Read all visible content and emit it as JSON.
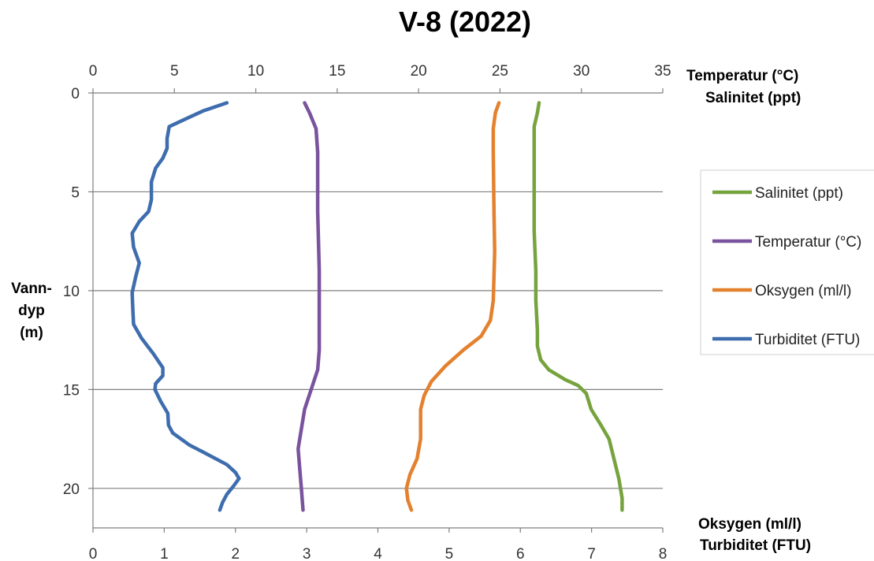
{
  "chart_data": {
    "type": "line",
    "title": "V-8 (2022)",
    "top_axis": {
      "label_line1": "Temperatur (°C)",
      "label_line2": "Salinitet (ppt)",
      "range": [
        0,
        35
      ],
      "ticks": [
        "0",
        "5",
        "10",
        "15",
        "20",
        "25",
        "30",
        "35"
      ]
    },
    "bottom_axis": {
      "label_line1": "Oksygen (ml/l)",
      "label_line2": "Turbiditet (FTU)",
      "range": [
        0,
        8
      ],
      "ticks": [
        "0",
        "1",
        "2",
        "3",
        "4",
        "5",
        "6",
        "7",
        "8"
      ]
    },
    "y_axis": {
      "label_lines": [
        "Vann-",
        "dyp",
        "(m)"
      ],
      "range": [
        0,
        22
      ],
      "inverted": true,
      "ticks": [
        "0",
        "5",
        "10",
        "15",
        "20"
      ]
    },
    "grid": "horizontal",
    "legend_position": "right",
    "series": [
      {
        "name": "Salinitet (ppt)",
        "axis": "top",
        "color": "#77A33E",
        "points": [
          [
            27.4,
            0.5
          ],
          [
            27.3,
            1.0
          ],
          [
            27.1,
            1.7
          ],
          [
            27.1,
            3
          ],
          [
            27.1,
            5
          ],
          [
            27.1,
            7
          ],
          [
            27.2,
            9
          ],
          [
            27.2,
            10.5
          ],
          [
            27.3,
            12
          ],
          [
            27.3,
            12.8
          ],
          [
            27.5,
            13.5
          ],
          [
            28.0,
            14.0
          ],
          [
            29.0,
            14.5
          ],
          [
            29.8,
            14.8
          ],
          [
            30.3,
            15.2
          ],
          [
            30.6,
            16.0
          ],
          [
            31.2,
            16.8
          ],
          [
            31.7,
            17.5
          ],
          [
            32.0,
            18.5
          ],
          [
            32.3,
            19.5
          ],
          [
            32.5,
            20.5
          ],
          [
            32.5,
            21.1
          ]
        ]
      },
      {
        "name": "Temperatur (°C)",
        "axis": "top",
        "color": "#7A539E",
        "points": [
          [
            13.0,
            0.5
          ],
          [
            13.3,
            1.0
          ],
          [
            13.7,
            1.8
          ],
          [
            13.8,
            3
          ],
          [
            13.8,
            6
          ],
          [
            13.9,
            9
          ],
          [
            13.9,
            11
          ],
          [
            13.9,
            13
          ],
          [
            13.8,
            14
          ],
          [
            13.4,
            15
          ],
          [
            13.0,
            16
          ],
          [
            12.8,
            17
          ],
          [
            12.6,
            18
          ],
          [
            12.7,
            19
          ],
          [
            12.8,
            20
          ],
          [
            12.9,
            21.1
          ]
        ]
      },
      {
        "name": "Oksygen (ml/l)",
        "axis": "bottom",
        "color": "#E4812E",
        "points": [
          [
            5.7,
            0.5
          ],
          [
            5.65,
            1.0
          ],
          [
            5.62,
            1.8
          ],
          [
            5.62,
            3
          ],
          [
            5.63,
            6
          ],
          [
            5.64,
            8
          ],
          [
            5.62,
            10.5
          ],
          [
            5.58,
            11.5
          ],
          [
            5.45,
            12.3
          ],
          [
            5.2,
            13
          ],
          [
            4.95,
            13.8
          ],
          [
            4.75,
            14.6
          ],
          [
            4.65,
            15.3
          ],
          [
            4.6,
            16
          ],
          [
            4.6,
            17.5
          ],
          [
            4.55,
            18.5
          ],
          [
            4.45,
            19.3
          ],
          [
            4.4,
            20.0
          ],
          [
            4.42,
            20.6
          ],
          [
            4.47,
            21.1
          ]
        ]
      },
      {
        "name": "Turbiditet (FTU)",
        "axis": "bottom",
        "color": "#3E6DAE",
        "points": [
          [
            1.88,
            0.5
          ],
          [
            1.55,
            0.9
          ],
          [
            1.25,
            1.4
          ],
          [
            1.07,
            1.7
          ],
          [
            1.04,
            2.3
          ],
          [
            1.04,
            2.8
          ],
          [
            0.98,
            3.3
          ],
          [
            0.88,
            3.8
          ],
          [
            0.82,
            4.5
          ],
          [
            0.82,
            5.4
          ],
          [
            0.78,
            6.0
          ],
          [
            0.65,
            6.5
          ],
          [
            0.55,
            7.1
          ],
          [
            0.57,
            7.8
          ],
          [
            0.65,
            8.6
          ],
          [
            0.6,
            9.3
          ],
          [
            0.55,
            10.1
          ],
          [
            0.56,
            11.0
          ],
          [
            0.57,
            11.7
          ],
          [
            0.68,
            12.4
          ],
          [
            0.85,
            13.2
          ],
          [
            0.98,
            13.9
          ],
          [
            0.98,
            14.3
          ],
          [
            0.88,
            14.7
          ],
          [
            0.87,
            15.0
          ],
          [
            0.95,
            15.6
          ],
          [
            1.05,
            16.2
          ],
          [
            1.06,
            16.8
          ],
          [
            1.12,
            17.2
          ],
          [
            1.35,
            17.8
          ],
          [
            1.62,
            18.3
          ],
          [
            1.88,
            18.8
          ],
          [
            2.0,
            19.2
          ],
          [
            2.05,
            19.5
          ],
          [
            1.97,
            19.9
          ],
          [
            1.88,
            20.3
          ],
          [
            1.82,
            20.7
          ],
          [
            1.78,
            21.1
          ]
        ]
      }
    ]
  }
}
